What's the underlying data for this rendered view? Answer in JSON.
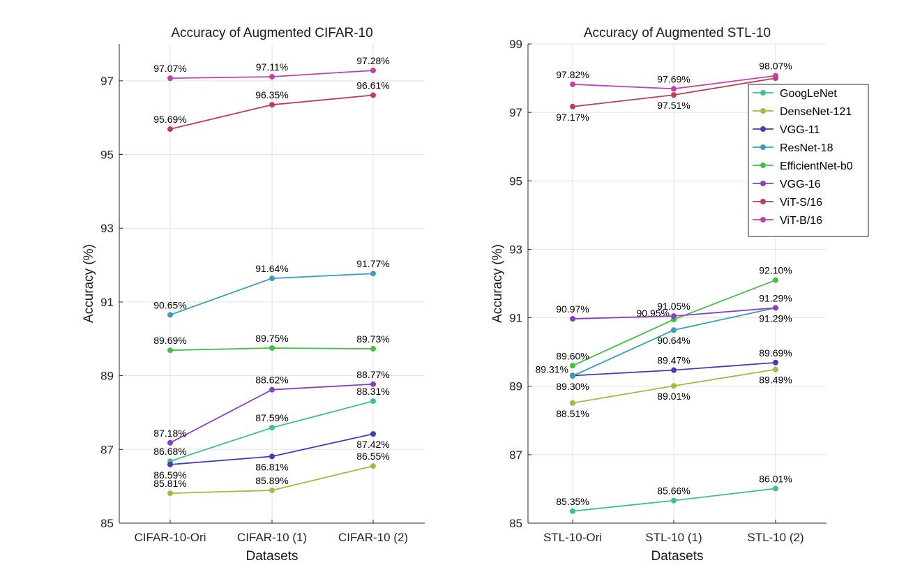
{
  "chart_data": [
    {
      "type": "line",
      "title": "Accuracy of Augmented CIFAR-10",
      "xlabel": "Datasets",
      "ylabel": "Accuracy (%)",
      "categories": [
        "CIFAR-10-Ori",
        "CIFAR-10 (1)",
        "CIFAR-10 (2)"
      ],
      "ylim": [
        85,
        98
      ],
      "yticks": [
        85,
        87,
        89,
        91,
        93,
        95,
        97
      ],
      "grid": true,
      "series": [
        {
          "name": "GoogLeNet",
          "values": [
            86.68,
            87.59,
            88.31
          ],
          "labels": [
            "86.68%",
            "87.59%",
            "88.31%"
          ],
          "label_pos": [
            "above",
            "above",
            "above"
          ],
          "color": "#3cc091"
        },
        {
          "name": "DenseNet-121",
          "values": [
            85.81,
            85.89,
            86.55
          ],
          "labels": [
            "85.81%",
            "85.89%",
            "86.55%"
          ],
          "label_pos": [
            "above",
            "above",
            "above"
          ],
          "color": "#97c040"
        },
        {
          "name": "VGG-11",
          "values": [
            86.59,
            86.81,
            87.42
          ],
          "labels": [
            "86.59%",
            "86.81%",
            "87.42%"
          ],
          "label_pos": [
            "below",
            "below",
            "below"
          ],
          "color": "#3d3fb8"
        },
        {
          "name": "ResNet-18",
          "values": [
            90.65,
            91.64,
            91.77
          ],
          "labels": [
            "90.65%",
            "91.64%",
            "91.77%"
          ],
          "label_pos": [
            "above",
            "above",
            "above"
          ],
          "color": "#3b9cc0"
        },
        {
          "name": "EfficientNet-b0",
          "values": [
            89.69,
            89.75,
            89.73
          ],
          "labels": [
            "89.69%",
            "89.75%",
            "89.73%"
          ],
          "label_pos": [
            "above",
            "above",
            "above"
          ],
          "color": "#40c040"
        },
        {
          "name": "VGG-16",
          "values": [
            87.18,
            88.62,
            88.77
          ],
          "labels": [
            "87.18%",
            "88.62%",
            "88.77%"
          ],
          "label_pos": [
            "above",
            "above",
            "above"
          ],
          "color": "#8a3fc0"
        },
        {
          "name": "ViT-S/16",
          "values": [
            95.69,
            96.35,
            96.61
          ],
          "labels": [
            "95.69%",
            "96.35%",
            "96.61%"
          ],
          "label_pos": [
            "above",
            "above",
            "above"
          ],
          "color": "#c03f4f"
        },
        {
          "name": "ViT-B/16",
          "values": [
            97.07,
            97.11,
            97.28
          ],
          "labels": [
            "97.07%",
            "97.11%",
            "97.28%"
          ],
          "label_pos": [
            "above",
            "above",
            "above"
          ],
          "color": "#c040b0"
        }
      ]
    },
    {
      "type": "line",
      "title": "Accuracy of Augmented STL-10",
      "xlabel": "Datasets",
      "ylabel": "Accuracy (%)",
      "categories": [
        "STL-10-Ori",
        "STL-10 (1)",
        "STL-10 (2)"
      ],
      "ylim": [
        85,
        99
      ],
      "yticks": [
        85,
        87,
        89,
        91,
        93,
        95,
        97,
        99
      ],
      "grid": true,
      "legend": "top-right",
      "series": [
        {
          "name": "GoogLeNet",
          "values": [
            85.35,
            85.66,
            86.01
          ],
          "labels": [
            "85.35%",
            "85.66%",
            "86.01%"
          ],
          "label_pos": [
            "above",
            "above",
            "above"
          ],
          "color": "#3cc091"
        },
        {
          "name": "DenseNet-121",
          "values": [
            88.51,
            89.01,
            89.49
          ],
          "labels": [
            "88.51%",
            "89.01%",
            "89.49%"
          ],
          "label_pos": [
            "below",
            "below",
            "below"
          ],
          "color": "#97c040"
        },
        {
          "name": "VGG-11",
          "values": [
            89.31,
            89.47,
            89.69
          ],
          "labels": [
            "89.31%",
            "89.47%",
            "89.69%"
          ],
          "label_pos": [
            "left",
            "above",
            "above"
          ],
          "color": "#3d3fb8"
        },
        {
          "name": "ResNet-18",
          "values": [
            89.3,
            90.64,
            91.29
          ],
          "labels": [
            "89.30%",
            "90.64%",
            "91.29%"
          ],
          "label_pos": [
            "below",
            "below",
            "below"
          ],
          "color": "#3b9cc0"
        },
        {
          "name": "EfficientNet-b0",
          "values": [
            89.6,
            90.95,
            92.1
          ],
          "labels": [
            "89.60%",
            "90.95%",
            "92.10%"
          ],
          "label_pos": [
            "above",
            "left",
            "above"
          ],
          "color": "#40c040"
        },
        {
          "name": "VGG-16",
          "values": [
            90.97,
            91.05,
            91.29
          ],
          "labels": [
            "90.97%",
            "91.05%",
            "91.29%"
          ],
          "label_pos": [
            "above",
            "above",
            "above"
          ],
          "color": "#8a3fc0"
        },
        {
          "name": "ViT-S/16",
          "values": [
            97.17,
            97.51,
            98.0
          ],
          "labels": [
            "97.17%",
            "97.51%",
            ""
          ],
          "label_pos": [
            "below",
            "below",
            "below"
          ],
          "color": "#c03f4f"
        },
        {
          "name": "ViT-B/16",
          "values": [
            97.82,
            97.69,
            98.07
          ],
          "labels": [
            "97.82%",
            "97.69%",
            "98.07%"
          ],
          "label_pos": [
            "above",
            "above",
            "above"
          ],
          "color": "#c040b0"
        }
      ]
    }
  ]
}
